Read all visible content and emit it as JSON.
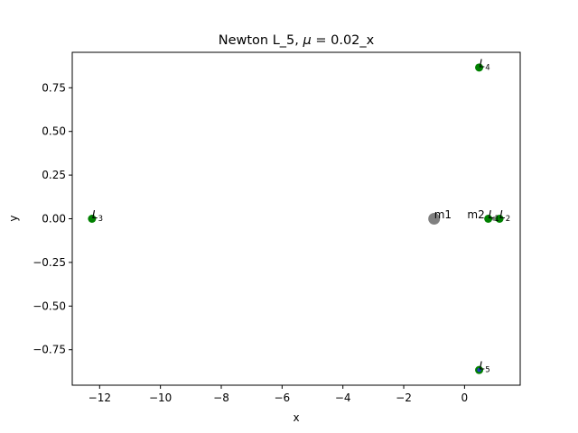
{
  "chart_data": {
    "type": "scatter",
    "title": "Newton L_5, μ = 0.02_x",
    "title_parts": {
      "prefix": "Newton L_5, ",
      "mu": "μ",
      "suffix": " = 0.02_x"
    },
    "xlabel": "x",
    "ylabel": "y",
    "xlim": [
      -12.9,
      1.83
    ],
    "ylim": [
      -0.953,
      0.953
    ],
    "xticks": [
      -12,
      -10,
      -8,
      -6,
      -4,
      -2,
      0
    ],
    "xtick_labels": [
      "−12",
      "−10",
      "−8",
      "−6",
      "−4",
      "−2",
      "0"
    ],
    "yticks": [
      0.75,
      0.5,
      0.25,
      0.0,
      -0.25,
      -0.5,
      -0.75
    ],
    "ytick_labels": [
      "0.75",
      "0.50",
      "0.25",
      "0.00",
      "−0.25",
      "−0.50",
      "−0.75"
    ],
    "grid": false,
    "points": [
      {
        "name": "m1",
        "x": -1.0,
        "y": 0.0,
        "color": "#808080",
        "size": "large"
      },
      {
        "name": "m2",
        "x": 0.98,
        "y": 0.0,
        "color": "#808080",
        "size": "small"
      },
      {
        "name": "L1",
        "x": 0.78,
        "y": 0.0,
        "color": "#008000",
        "size": "normal"
      },
      {
        "name": "L2",
        "x": 1.15,
        "y": 0.0,
        "color": "#008000",
        "size": "normal"
      },
      {
        "name": "L3",
        "x": -12.25,
        "y": 0.0,
        "color": "#008000",
        "size": "normal"
      },
      {
        "name": "L4",
        "x": 0.48,
        "y": 0.866,
        "color": "#008000",
        "size": "normal"
      },
      {
        "name": "L5",
        "x": 0.48,
        "y": -0.866,
        "color": "#008000",
        "size": "normal"
      },
      {
        "name": "newton-L5",
        "x": 0.48,
        "y": -0.866,
        "color": "#1f3fbf",
        "size": "tiny"
      }
    ],
    "labels": [
      {
        "id": "m1",
        "text": "m1",
        "x": -1.0,
        "y": 0.0,
        "type": "plain"
      },
      {
        "id": "m2",
        "text": "m2",
        "x": 0.98,
        "y": 0.0,
        "type": "plain-left"
      },
      {
        "id": "L1",
        "main": "L",
        "sub": "1",
        "x": 0.78,
        "y": 0.0,
        "type": "lagrange"
      },
      {
        "id": "L2",
        "main": "L",
        "sub": "2",
        "x": 1.15,
        "y": 0.0,
        "type": "lagrange"
      },
      {
        "id": "L3",
        "main": "L",
        "sub": "3",
        "x": -12.25,
        "y": 0.0,
        "type": "lagrange"
      },
      {
        "id": "L4",
        "main": "L",
        "sub": "4",
        "x": 0.48,
        "y": 0.866,
        "type": "lagrange"
      },
      {
        "id": "L5",
        "main": "L",
        "sub": "5",
        "x": 0.48,
        "y": -0.866,
        "type": "lagrange"
      }
    ]
  }
}
